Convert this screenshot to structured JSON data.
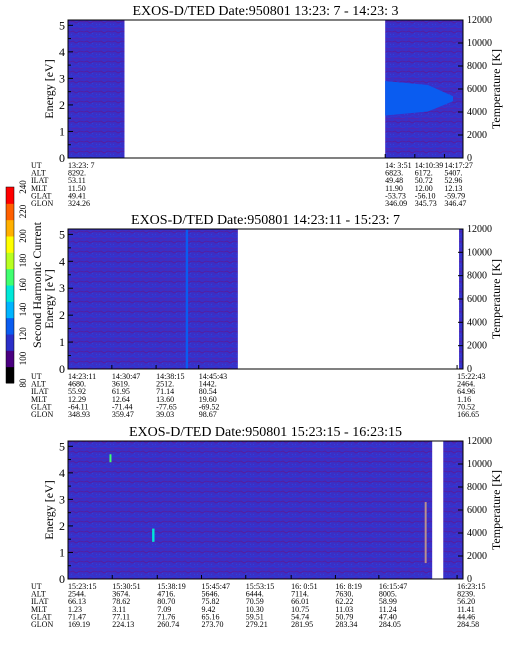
{
  "chart_data": {
    "type": "heatmap",
    "colorbar": {
      "label": "Second Harmonic Current",
      "ticks": [
        "80",
        "100",
        "120",
        "140",
        "160",
        "180",
        "200",
        "220",
        "240"
      ],
      "colors": [
        "#000000",
        "#4a0080",
        "#2b2fc8",
        "#0a5cf0",
        "#00b4ff",
        "#00e8d8",
        "#40ff70",
        "#b8ff20",
        "#ffff00",
        "#ffb000",
        "#ff6000",
        "#ff0000"
      ]
    },
    "panels": [
      {
        "title": "EXOS-D/TED   Date:950801  13:23: 7 - 14:23: 3",
        "ylabel": "Energy [eV]",
        "y2label": "Temperature [K]",
        "yticks": [
          "0",
          "1",
          "2",
          "3",
          "4",
          "5"
        ],
        "y2ticks": [
          "0",
          "2000",
          "4000",
          "6000",
          "8000",
          "10000",
          "12000"
        ],
        "ylim": [
          0,
          5.2
        ],
        "y2lim": [
          0,
          12000
        ],
        "xlim": [
          0,
          1
        ],
        "data_segments": [
          [
            0,
            0.143
          ],
          [
            0.803,
            1
          ]
        ],
        "features": [
          {
            "x": [
              0.803,
              1.0
            ],
            "y": [
              1.6,
              2.9
            ],
            "color": "#0a5cf0",
            "shape": "wedge"
          }
        ],
        "ephemeris_labels": [
          "UT",
          "ALT",
          "ILAT",
          "MLT",
          "GLAT",
          "GLON"
        ],
        "ephemeris_columns": [
          {
            "x": 0.0,
            "values": [
              "13:23: 7",
              "8292.",
              "53.11",
              "11.50",
              "49.41",
              "324.26"
            ]
          },
          {
            "x": 0.803,
            "values": [
              "14: 3:51",
              "6823.",
              "49.48",
              "11.90",
              "-53.73",
              "346.09"
            ]
          },
          {
            "x": 0.878,
            "values": [
              "14:10:39",
              "6172.",
              "50.72",
              "12.00",
              "-56.10",
              "345.73"
            ]
          },
          {
            "x": 0.953,
            "values": [
              "14:17:27",
              "5407.",
              "52.96",
              "12.13",
              "-59.79",
              "346.47"
            ]
          }
        ]
      },
      {
        "title": "EXOS-D/TED   Date:950801  14:23:11 - 15:23: 7",
        "ylabel": "Energy [eV]",
        "y2label": "Temperature [K]",
        "yticks": [
          "0",
          "1",
          "2",
          "3",
          "4",
          "5"
        ],
        "y2ticks": [
          "0",
          "2000",
          "4000",
          "6000",
          "8000",
          "10000",
          "12000"
        ],
        "ylim": [
          0,
          5.2
        ],
        "y2lim": [
          0,
          12000
        ],
        "xlim": [
          0,
          1
        ],
        "data_segments": [
          [
            0,
            0.43
          ],
          [
            0.99,
            1
          ]
        ],
        "features": [
          {
            "x": [
              0.298,
              0.304
            ],
            "y": [
              0,
              5.2
            ],
            "color": "#0a5cf0",
            "shape": "line"
          }
        ],
        "ephemeris_labels": [
          "UT",
          "ALT",
          "ILAT",
          "MLT",
          "GLAT",
          "GLON"
        ],
        "ephemeris_columns": [
          {
            "x": 0.0,
            "values": [
              "14:23:11",
              "4680.",
              "55.92",
              "12.29",
              "-64.11",
              "348.93"
            ]
          },
          {
            "x": 0.111,
            "values": [
              "14:30:47",
              "3619.",
              "61.95",
              "12.64",
              "-71.44",
              "359.47"
            ]
          },
          {
            "x": 0.223,
            "values": [
              "14:38:15",
              "2512.",
              "71.14",
              "13.60",
              "-77.65",
              "39.03"
            ]
          },
          {
            "x": 0.331,
            "values": [
              "14:45:43",
              "1442.",
              "80.54",
              "19.60",
              "-69.52",
              "98.67"
            ]
          },
          {
            "x": 0.985,
            "values": [
              "15:22:43",
              "2464.",
              "64.96",
              "1.16",
              "70.52",
              "166.65"
            ]
          }
        ]
      },
      {
        "title": "EXOS-D/TED   Date:950801  15:23:15 - 16:23:15",
        "ylabel": "Energy [eV]",
        "y2label": "Temperature [K]",
        "yticks": [
          "0",
          "1",
          "2",
          "3",
          "4",
          "5"
        ],
        "y2ticks": [
          "0",
          "2000",
          "4000",
          "6000",
          "8000",
          "10000",
          "12000"
        ],
        "ylim": [
          0,
          5.2
        ],
        "y2lim": [
          0,
          12000
        ],
        "xlim": [
          0,
          1
        ],
        "data_segments": [
          [
            0,
            0.922
          ],
          [
            0.95,
            1
          ]
        ],
        "features": [
          {
            "x": [
              0.213,
              0.219
            ],
            "y": [
              1.4,
              1.9
            ],
            "color": "#00e8d8",
            "shape": "line"
          },
          {
            "x": [
              0.105,
              0.11
            ],
            "y": [
              4.4,
              4.7
            ],
            "color": "#40ff70",
            "shape": "line"
          },
          {
            "x": [
              0.903,
              0.908
            ],
            "y": [
              0.6,
              2.9
            ],
            "color": "#b89090",
            "shape": "line"
          }
        ],
        "ephemeris_labels": [
          "UT",
          "ALT",
          "ILAT",
          "MLT",
          "GLAT",
          "GLON"
        ],
        "ephemeris_columns": [
          {
            "x": 0.0,
            "values": [
              "15:23:15",
              "2544.",
              "66.13",
              "1.23",
              "71.47",
              "169.19"
            ]
          },
          {
            "x": 0.112,
            "values": [
              "15:30:51",
              "3674.",
              "78.62",
              "3.11",
              "77.11",
              "224.13"
            ]
          },
          {
            "x": 0.226,
            "values": [
              "15:38:19",
              "4716.",
              "80.70",
              "7.09",
              "71.76",
              "260.74"
            ]
          },
          {
            "x": 0.338,
            "values": [
              "15:45:47",
              "5646.",
              "75.82",
              "9.42",
              "65.16",
              "273.70"
            ]
          },
          {
            "x": 0.45,
            "values": [
              "15:53:15",
              "6444.",
              "70.59",
              "10.30",
              "59.51",
              "279.21"
            ]
          },
          {
            "x": 0.565,
            "values": [
              "16: 0:51",
              "7114.",
              "66.01",
              "10.75",
              "54.74",
              "281.95"
            ]
          },
          {
            "x": 0.677,
            "values": [
              "16: 8:19",
              "7630.",
              "62.22",
              "11.03",
              "50.79",
              "283.34"
            ]
          },
          {
            "x": 0.787,
            "values": [
              "16:15:47",
              "8005.",
              "58.99",
              "11.24",
              "47.40",
              "284.05"
            ]
          },
          {
            "x": 0.985,
            "values": [
              "16:23:15",
              "8239.",
              "56.20",
              "11.41",
              "44.46",
              "284.58"
            ]
          }
        ]
      }
    ]
  }
}
